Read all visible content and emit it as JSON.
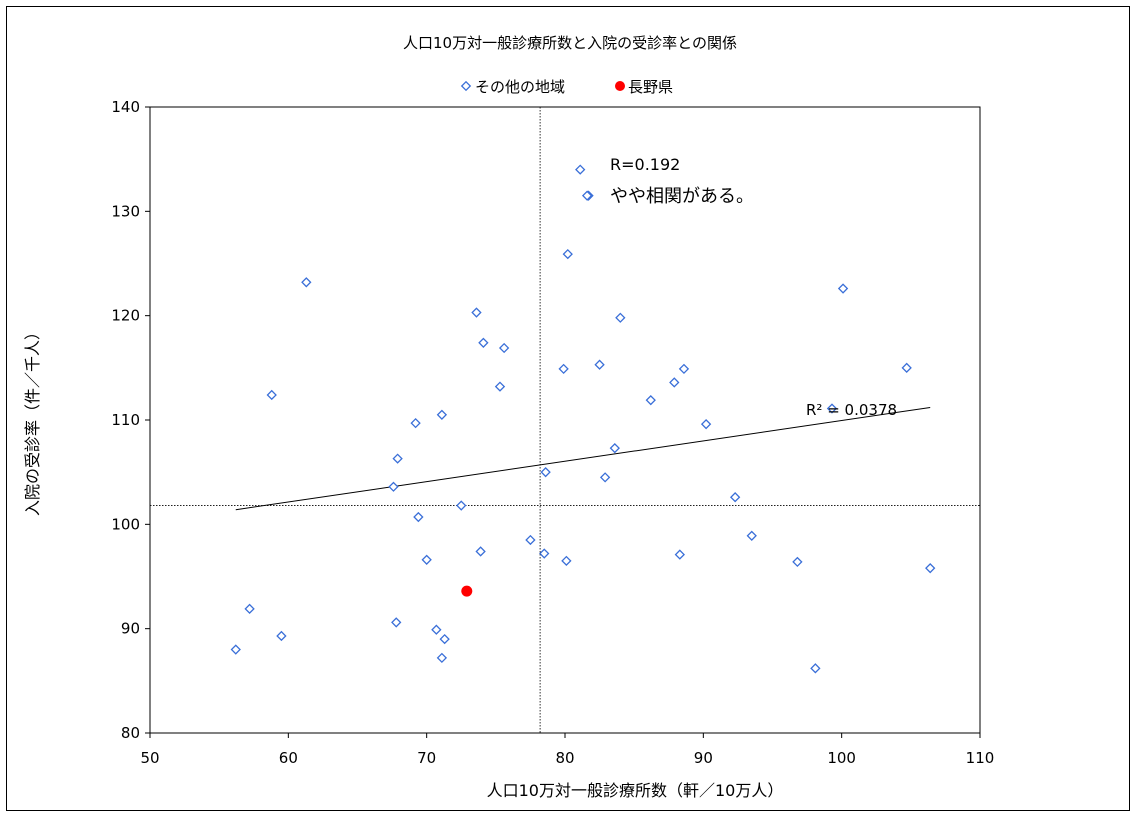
{
  "chart_data": {
    "type": "scatter",
    "title": "人口10万対一般診療所数と入院の受診率との関係",
    "xlabel": "人口10万対一般診療所数（軒／10万人）",
    "ylabel": "入院の受診率（件／千人）",
    "xlim": [
      50,
      110
    ],
    "ylim": [
      80,
      140
    ],
    "xticks": [
      "50",
      "60",
      "70",
      "80",
      "90",
      "100",
      "110"
    ],
    "yticks": [
      "80",
      "90",
      "100",
      "110",
      "120",
      "130",
      "140"
    ],
    "grid": false,
    "legend_position": "top-center",
    "series": [
      {
        "name": "その他の地域",
        "marker": "diamond",
        "color": "#3a6fd8",
        "x": [
          56.2,
          57.2,
          58.8,
          59.5,
          61.3,
          67.6,
          67.8,
          67.9,
          69.2,
          69.4,
          70.0,
          70.7,
          71.1,
          71.1,
          71.3,
          72.5,
          73.6,
          73.9,
          74.1,
          75.3,
          75.6,
          77.5,
          78.5,
          78.6,
          79.9,
          80.1,
          80.2,
          81.7,
          82.5,
          82.9,
          83.6,
          84.0,
          86.2,
          87.9,
          88.3,
          88.6,
          90.2,
          92.3,
          93.5,
          96.8,
          98.1,
          99.3,
          100.1,
          104.7,
          106.4
        ],
        "y": [
          88.0,
          91.9,
          112.4,
          89.3,
          123.2,
          103.6,
          90.6,
          106.3,
          109.7,
          100.7,
          96.6,
          89.9,
          87.2,
          110.5,
          89.0,
          101.8,
          120.3,
          97.4,
          117.4,
          113.2,
          116.9,
          98.5,
          97.2,
          105.0,
          114.9,
          96.5,
          125.9,
          131.5,
          115.3,
          104.5,
          107.3,
          119.8,
          111.9,
          113.6,
          97.1,
          114.9,
          109.6,
          102.6,
          98.9,
          96.4,
          86.2,
          111.1,
          122.6,
          115.0,
          95.8
        ]
      },
      {
        "name": "長野県",
        "marker": "circle",
        "color": "#ff0000",
        "x": [
          72.9
        ],
        "y": [
          93.6
        ]
      }
    ],
    "trendline": {
      "x": [
        56.2,
        106.4
      ],
      "y": [
        101.4,
        111.2
      ],
      "r2_label": "R² = 0.0378"
    },
    "reference_lines": {
      "x": 78.2,
      "y": 101.8
    },
    "annotations": [
      "R=0.192",
      "やや相関がある。"
    ]
  }
}
